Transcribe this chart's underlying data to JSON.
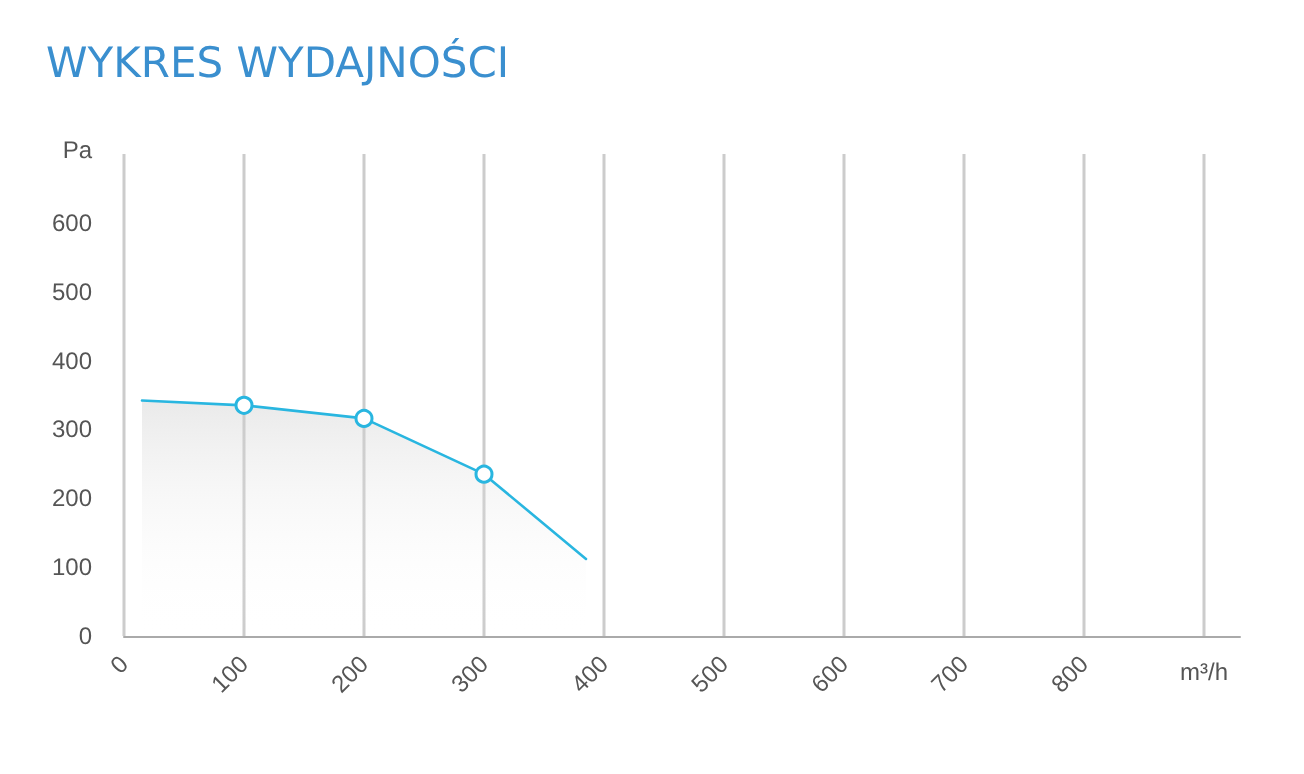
{
  "chart_data": {
    "type": "area",
    "title": "WYKRES WYDAJNOŚCI",
    "xlabel": "m³/h",
    "ylabel": "Pa",
    "x": [
      15,
      100,
      200,
      300,
      385
    ],
    "series": [
      {
        "color": "#29b6e0",
        "values": [
          342,
          335,
          316,
          235,
          112
        ]
      }
    ],
    "xlim": [
      0,
      930
    ],
    "xticks": [
      0,
      100,
      200,
      300,
      400,
      500,
      600,
      700,
      800,
      {
        "value": 900,
        "label": null
      }
    ],
    "ylim": [
      0,
      700
    ],
    "yticks": [
      0,
      100,
      200,
      300,
      400,
      500,
      600
    ],
    "grid": "x",
    "marker": "circle",
    "line_style": "solid"
  }
}
